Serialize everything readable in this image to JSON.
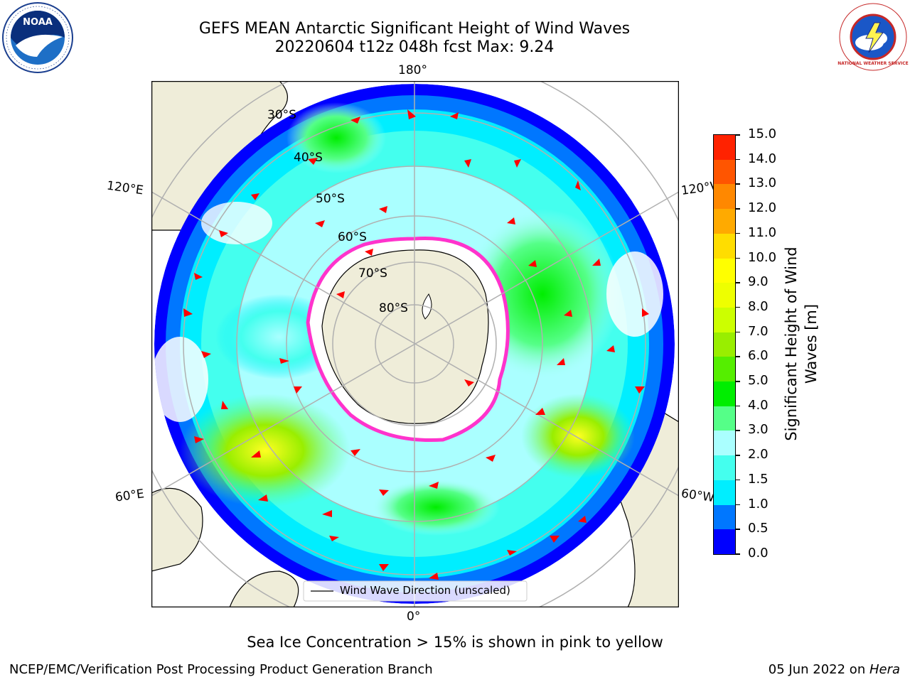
{
  "header": {
    "title_line1": "GEFS MEAN Antarctic Significant Height of Wind Waves",
    "title_line2": "20220604 t12z 048h fcst   Max: 9.24"
  },
  "logos": {
    "left": "NOAA",
    "right": "NATIONAL WEATHER SERVICE"
  },
  "map": {
    "projection": "south-polar-stereographic",
    "lon_labels": {
      "top": "180°",
      "bottom": "0°",
      "left_upper": "120°E",
      "left_lower": "60°E",
      "right_upper": "120°W",
      "right_lower": "60°W"
    },
    "lat_labels": [
      "30°S",
      "40°S",
      "50°S",
      "60°S",
      "70°S",
      "80°S"
    ],
    "legend": "Wind Wave Direction (unscaled)",
    "colors": {
      "land": "#efedd9",
      "ocean_clear": "#ffffff",
      "ice_edge": "#ff33cc",
      "arrow": "#ff0000",
      "grid": "#b0b0b0"
    }
  },
  "colorbar": {
    "label": "Significant Height of Wind Waves [m]",
    "ticks": [
      "0.0",
      "0.5",
      "1.0",
      "1.5",
      "2.0",
      "3.0",
      "4.0",
      "5.0",
      "6.0",
      "7.0",
      "8.0",
      "9.0",
      "10.0",
      "11.0",
      "12.0",
      "13.0",
      "14.0",
      "15.0"
    ],
    "colors": [
      "#0000ff",
      "#0077ff",
      "#00eeff",
      "#44ffee",
      "#aaffff",
      "#55ff88",
      "#00ee00",
      "#55ee00",
      "#99ee00",
      "#ccff00",
      "#eeff00",
      "#ffff00",
      "#ffdd00",
      "#ffaa00",
      "#ff8800",
      "#ff5500",
      "#ff2200",
      "#ff0000"
    ]
  },
  "caption": "Sea Ice Concentration > 15% is shown in pink to yellow",
  "footer": {
    "left": "NCEP/EMC/Verification Post Processing Product Generation Branch",
    "right_prefix": "05 Jun 2022 on ",
    "right_machine": "Hera"
  }
}
